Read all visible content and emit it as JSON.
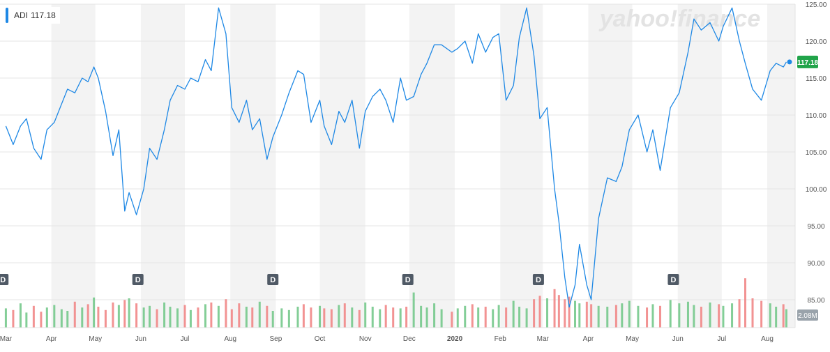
{
  "legend": {
    "symbol": "ADI",
    "last_price": "117.18"
  },
  "watermark": {
    "text": "yahoo!finance"
  },
  "colors": {
    "line": "#1e88e5",
    "band": "#f3f3f3",
    "vol_up": "#6dc685",
    "vol_down": "#f08080",
    "price_badge": "#21a44a",
    "dividend_marker": "#505a66"
  },
  "chart_data": {
    "type": "line",
    "title": "",
    "series": [
      {
        "name": "ADI",
        "x": [
          "2019-03-01",
          "2019-03-06",
          "2019-03-11",
          "2019-03-15",
          "2019-03-20",
          "2019-03-25",
          "2019-03-29",
          "2019-04-03",
          "2019-04-08",
          "2019-04-12",
          "2019-04-17",
          "2019-04-22",
          "2019-04-26",
          "2019-04-30",
          "2019-05-03",
          "2019-05-08",
          "2019-05-13",
          "2019-05-17",
          "2019-05-21",
          "2019-05-24",
          "2019-05-29",
          "2019-06-03",
          "2019-06-07",
          "2019-06-12",
          "2019-06-17",
          "2019-06-21",
          "2019-06-26",
          "2019-07-01",
          "2019-07-05",
          "2019-07-10",
          "2019-07-15",
          "2019-07-19",
          "2019-07-24",
          "2019-07-29",
          "2019-08-02",
          "2019-08-07",
          "2019-08-12",
          "2019-08-16",
          "2019-08-21",
          "2019-08-26",
          "2019-08-30",
          "2019-09-05",
          "2019-09-10",
          "2019-09-16",
          "2019-09-20",
          "2019-09-25",
          "2019-10-01",
          "2019-10-04",
          "2019-10-09",
          "2019-10-14",
          "2019-10-18",
          "2019-10-23",
          "2019-10-28",
          "2019-11-01",
          "2019-11-06",
          "2019-11-11",
          "2019-11-15",
          "2019-11-20",
          "2019-11-25",
          "2019-11-29",
          "2019-12-04",
          "2019-12-09",
          "2019-12-13",
          "2019-12-18",
          "2019-12-23",
          "2019-12-30",
          "2020-01-03",
          "2020-01-08",
          "2020-01-13",
          "2020-01-17",
          "2020-01-22",
          "2020-01-27",
          "2020-01-31",
          "2020-02-05",
          "2020-02-10",
          "2020-02-14",
          "2020-02-19",
          "2020-02-24",
          "2020-02-28",
          "2020-03-04",
          "2020-03-09",
          "2020-03-12",
          "2020-03-16",
          "2020-03-19",
          "2020-03-23",
          "2020-03-26",
          "2020-03-31",
          "2020-04-03",
          "2020-04-08",
          "2020-04-14",
          "2020-04-20",
          "2020-04-24",
          "2020-04-29",
          "2020-05-05",
          "2020-05-11",
          "2020-05-15",
          "2020-05-20",
          "2020-05-27",
          "2020-06-02",
          "2020-06-08",
          "2020-06-12",
          "2020-06-17",
          "2020-06-23",
          "2020-06-29",
          "2020-07-02",
          "2020-07-08",
          "2020-07-13",
          "2020-07-17",
          "2020-07-22",
          "2020-07-28",
          "2020-08-03",
          "2020-08-07",
          "2020-08-12",
          "2020-08-14"
        ],
        "values": [
          108.5,
          106.0,
          108.5,
          109.5,
          105.5,
          104.0,
          108.0,
          109.0,
          111.5,
          113.5,
          113.0,
          115.0,
          114.5,
          116.5,
          115.0,
          110.5,
          104.5,
          108.0,
          97.0,
          99.5,
          96.5,
          100.0,
          105.5,
          104.0,
          108.0,
          112.0,
          114.0,
          113.5,
          115.0,
          114.5,
          117.5,
          116.0,
          124.5,
          121.0,
          111.0,
          109.0,
          112.0,
          108.0,
          109.5,
          104.0,
          107.0,
          110.0,
          113.0,
          116.0,
          115.5,
          109.0,
          112.0,
          108.5,
          106.0,
          110.5,
          109.0,
          112.0,
          105.5,
          110.5,
          112.5,
          113.5,
          112.0,
          109.0,
          115.0,
          112.0,
          112.5,
          115.5,
          117.0,
          119.5,
          119.5,
          118.5,
          119.0,
          120.0,
          117.0,
          121.0,
          118.5,
          120.5,
          121.0,
          112.0,
          114.0,
          120.5,
          124.5,
          118.0,
          109.5,
          111.0,
          100.0,
          95.5,
          88.0,
          84.0,
          87.0,
          92.5,
          87.0,
          85.0,
          96.0,
          101.5,
          101.0,
          103.0,
          108.0,
          110.0,
          105.0,
          108.0,
          102.5,
          111.0,
          113.0,
          118.5,
          123.0,
          121.5,
          122.5,
          120.0,
          122.0,
          124.5,
          120.0,
          117.0,
          113.5,
          112.0,
          116.0,
          117.0,
          116.5,
          117.18
        ]
      }
    ],
    "ylim": [
      82,
      125
    ],
    "y_ticks": [
      "125.00",
      "120.00",
      "115.00",
      "110.00",
      "105.00",
      "100.00",
      "95.00",
      "90.00",
      "85.00"
    ],
    "x_ticks": [
      {
        "label": "Mar",
        "date": "2019-03-01"
      },
      {
        "label": "Apr",
        "date": "2019-04-01"
      },
      {
        "label": "May",
        "date": "2019-05-01"
      },
      {
        "label": "Jun",
        "date": "2019-06-01"
      },
      {
        "label": "Jul",
        "date": "2019-07-01"
      },
      {
        "label": "Aug",
        "date": "2019-08-01"
      },
      {
        "label": "Sep",
        "date": "2019-09-01"
      },
      {
        "label": "Oct",
        "date": "2019-10-01"
      },
      {
        "label": "Nov",
        "date": "2019-11-01"
      },
      {
        "label": "Dec",
        "date": "2019-12-01"
      },
      {
        "label": "2020",
        "date": "2020-01-01"
      },
      {
        "label": "Feb",
        "date": "2020-02-01"
      },
      {
        "label": "Mar",
        "date": "2020-03-01"
      },
      {
        "label": "Apr",
        "date": "2020-04-01"
      },
      {
        "label": "May",
        "date": "2020-05-01"
      },
      {
        "label": "Jun",
        "date": "2020-06-01"
      },
      {
        "label": "Jul",
        "date": "2020-07-01"
      },
      {
        "label": "Aug",
        "date": "2020-08-01"
      }
    ],
    "dividend_markers": [
      {
        "label": "D",
        "date": "2019-02-27"
      },
      {
        "label": "D",
        "date": "2019-05-30"
      },
      {
        "label": "D",
        "date": "2019-08-30"
      },
      {
        "label": "D",
        "date": "2019-11-30"
      },
      {
        "label": "D",
        "date": "2020-02-27"
      },
      {
        "label": "D",
        "date": "2020-05-29"
      }
    ],
    "last_price_label": "117.18",
    "volume": {
      "axis_label": "2.08M",
      "values_m": [
        2.3,
        2.1,
        2.9,
        1.8,
        2.6,
        1.9,
        2.4,
        2.7,
        2.2,
        2.0,
        3.1,
        2.4,
        2.8,
        3.6,
        2.5,
        2.1,
        3.0,
        2.7,
        3.3,
        3.5,
        2.9,
        2.4,
        2.6,
        2.2,
        3.0,
        2.5,
        2.3,
        2.7,
        2.1,
        2.4,
        2.8,
        3.0,
        2.6,
        3.4,
        2.2,
        2.9,
        2.5,
        2.4,
        3.1,
        2.6,
        2.0,
        2.3,
        2.1,
        2.5,
        2.8,
        2.4,
        2.6,
        2.3,
        2.2,
        2.7,
        2.9,
        2.4,
        2.1,
        3.0,
        2.5,
        2.2,
        2.7,
        2.4,
        2.3,
        2.5,
        4.2,
        2.6,
        2.4,
        2.9,
        2.2,
        1.9,
        2.3,
        2.6,
        2.8,
        2.4,
        2.5,
        2.2,
        2.7,
        2.4,
        3.2,
        2.5,
        2.3,
        3.4,
        3.8,
        3.5,
        4.6,
        3.9,
        3.4,
        3.7,
        3.2,
        2.9,
        3.1,
        2.8,
        2.6,
        2.5,
        2.7,
        2.9,
        3.2,
        2.6,
        2.4,
        2.8,
        2.6,
        3.3,
        2.9,
        3.1,
        2.7,
        2.5,
        3.0,
        2.8,
        2.6,
        2.9,
        3.4,
        5.9,
        3.5,
        3.2,
        2.9,
        2.5,
        2.8,
        2.2
      ]
    },
    "grid": true,
    "legend": "top-left"
  }
}
